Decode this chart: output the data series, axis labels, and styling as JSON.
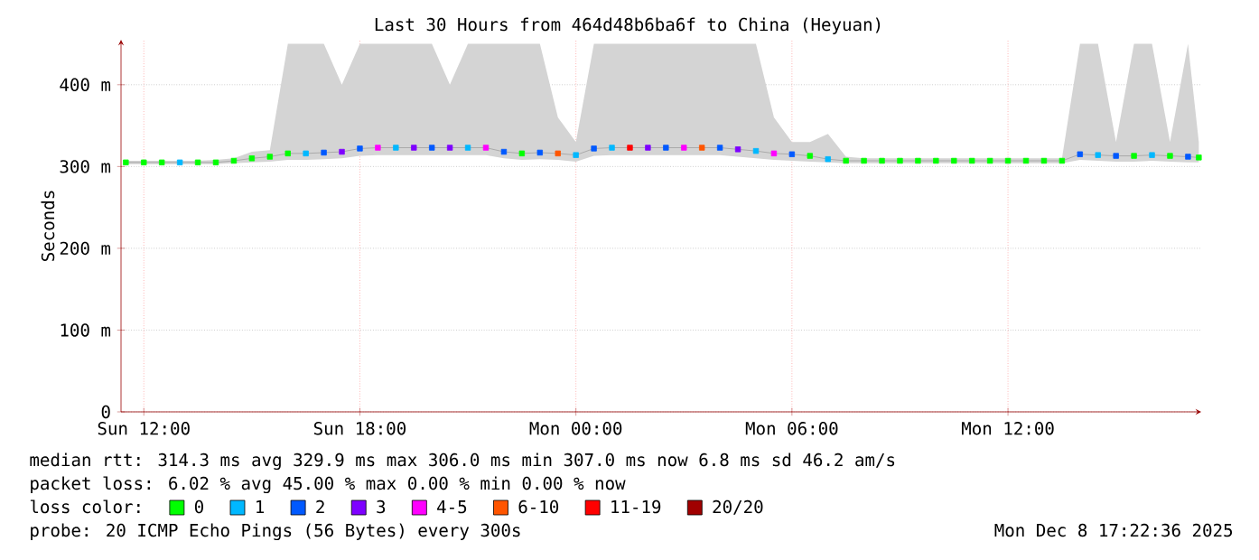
{
  "chart_data": {
    "type": "scatter",
    "title": "Last 30 Hours from 464d48b6ba6f to China (Heyuan)",
    "ylabel": "Seconds",
    "legend_title": "loss color:",
    "legend": "bottom",
    "grid": true,
    "marker": "square",
    "xlim": [
      "2025-12-07T11:22",
      "2025-12-08T17:22"
    ],
    "ylim": [
      0,
      455
    ],
    "xticks": [
      {
        "value": "2025-12-07T12:00",
        "label": "Sun 12:00"
      },
      {
        "value": "2025-12-07T18:00",
        "label": "Sun 18:00"
      },
      {
        "value": "2025-12-08T00:00",
        "label": "Mon 00:00"
      },
      {
        "value": "2025-12-08T06:00",
        "label": "Mon 06:00"
      },
      {
        "value": "2025-12-08T12:00",
        "label": "Mon 12:00"
      }
    ],
    "yticks": [
      0,
      {
        "value": 100,
        "label": "100 m"
      },
      {
        "value": 200,
        "label": "200 m"
      },
      {
        "value": 300,
        "label": "300 m"
      },
      {
        "value": 400,
        "label": "400 m"
      }
    ],
    "annotations": [
      "median rtt: 314.3 ms avg 329.9 ms max 306.0 ms min 307.0 ms now 6.8 ms sd 46.2 am/s",
      "packet loss: 6.02 % avg 45.00 % max 0.00 % min 0.00 % now",
      "probe: 20 ICMP Echo Pings (56 Bytes) every 300s",
      "Mon Dec 8 17:22:36 2025"
    ],
    "series": [
      {
        "type": "line",
        "color": "#aaaaaa",
        "marker": "none",
        "x": [
          "2025-12-07T11:30",
          "2025-12-07T12:00",
          "2025-12-07T12:30",
          "2025-12-07T13:00",
          "2025-12-07T13:30",
          "2025-12-07T14:00",
          "2025-12-07T14:30",
          "2025-12-07T15:00",
          "2025-12-07T15:30",
          "2025-12-07T16:00",
          "2025-12-07T16:30",
          "2025-12-07T17:00",
          "2025-12-07T17:30",
          "2025-12-07T18:00",
          "2025-12-07T18:30",
          "2025-12-07T19:00",
          "2025-12-07T19:30",
          "2025-12-07T20:00",
          "2025-12-07T20:30",
          "2025-12-07T21:00",
          "2025-12-07T21:30",
          "2025-12-07T22:00",
          "2025-12-07T22:30",
          "2025-12-07T23:00",
          "2025-12-07T23:30",
          "2025-12-08T00:00",
          "2025-12-08T00:30",
          "2025-12-08T01:00",
          "2025-12-08T01:30",
          "2025-12-08T02:00",
          "2025-12-08T02:30",
          "2025-12-08T03:00",
          "2025-12-08T03:30",
          "2025-12-08T04:00",
          "2025-12-08T04:30",
          "2025-12-08T05:00",
          "2025-12-08T05:30",
          "2025-12-08T06:00",
          "2025-12-08T06:30",
          "2025-12-08T07:00",
          "2025-12-08T07:30",
          "2025-12-08T08:00",
          "2025-12-08T08:30",
          "2025-12-08T09:00",
          "2025-12-08T09:30",
          "2025-12-08T10:00",
          "2025-12-08T10:30",
          "2025-12-08T11:00",
          "2025-12-08T11:30",
          "2025-12-08T12:00",
          "2025-12-08T12:30",
          "2025-12-08T13:00",
          "2025-12-08T13:30",
          "2025-12-08T14:00",
          "2025-12-08T14:30",
          "2025-12-08T15:00",
          "2025-12-08T15:30",
          "2025-12-08T16:00",
          "2025-12-08T16:30",
          "2025-12-08T17:00",
          "2025-12-08T17:18"
        ],
        "values": [
          305,
          305,
          305,
          305,
          305,
          305,
          307,
          310,
          312,
          316,
          316,
          317,
          318,
          322,
          323,
          323,
          323,
          323,
          323,
          323,
          323,
          318,
          316,
          317,
          316,
          314,
          322,
          323,
          323,
          323,
          323,
          323,
          323,
          323,
          321,
          319,
          316,
          315,
          313,
          309,
          307,
          307,
          307,
          307,
          307,
          307,
          307,
          307,
          307,
          307,
          307,
          307,
          307,
          315,
          314,
          313,
          313,
          314,
          313,
          312,
          311
        ],
        "lower": [
          303,
          303,
          303,
          303,
          303,
          303,
          304,
          305,
          306,
          308,
          308,
          309,
          310,
          313,
          314,
          314,
          314,
          314,
          314,
          314,
          314,
          310,
          308,
          309,
          308,
          306,
          313,
          314,
          314,
          314,
          314,
          314,
          314,
          314,
          312,
          310,
          308,
          307,
          306,
          305,
          304,
          304,
          304,
          304,
          304,
          304,
          304,
          304,
          304,
          304,
          304,
          304,
          304,
          308,
          307,
          306,
          306,
          307,
          306,
          305,
          305
        ],
        "upper": [
          307,
          307,
          307,
          307,
          307,
          308,
          310,
          318,
          320,
          450,
          450,
          450,
          400,
          450,
          450,
          450,
          450,
          450,
          400,
          450,
          450,
          450,
          450,
          450,
          360,
          330,
          450,
          450,
          450,
          450,
          450,
          450,
          450,
          450,
          450,
          450,
          360,
          330,
          330,
          340,
          312,
          310,
          310,
          310,
          310,
          310,
          310,
          310,
          310,
          310,
          310,
          310,
          310,
          450,
          450,
          330,
          450,
          450,
          330,
          450,
          330
        ]
      },
      {
        "name": "0",
        "color": "#00ff00",
        "x": [
          "2025-12-07T11:30",
          "2025-12-07T12:00",
          "2025-12-07T12:30",
          "2025-12-07T13:30",
          "2025-12-07T14:00",
          "2025-12-07T14:30",
          "2025-12-07T15:00",
          "2025-12-07T15:30",
          "2025-12-07T16:00",
          "2025-12-07T22:30",
          "2025-12-08T06:30",
          "2025-12-08T07:30",
          "2025-12-08T08:00",
          "2025-12-08T08:30",
          "2025-12-08T09:00",
          "2025-12-08T09:30",
          "2025-12-08T10:00",
          "2025-12-08T10:30",
          "2025-12-08T11:00",
          "2025-12-08T11:30",
          "2025-12-08T12:00",
          "2025-12-08T12:30",
          "2025-12-08T13:00",
          "2025-12-08T13:30",
          "2025-12-08T15:30",
          "2025-12-08T16:30",
          "2025-12-08T17:18"
        ],
        "values": [
          305,
          305,
          305,
          305,
          305,
          307,
          310,
          312,
          316,
          316,
          313,
          307,
          307,
          307,
          307,
          307,
          307,
          307,
          307,
          307,
          307,
          307,
          307,
          307,
          313,
          313,
          311
        ]
      },
      {
        "name": "1",
        "color": "#00b8ff",
        "x": [
          "2025-12-07T13:00",
          "2025-12-07T16:30",
          "2025-12-07T19:00",
          "2025-12-07T21:00",
          "2025-12-08T00:00",
          "2025-12-08T01:00",
          "2025-12-08T05:00",
          "2025-12-08T07:00",
          "2025-12-08T14:30",
          "2025-12-08T16:00"
        ],
        "values": [
          305,
          316,
          323,
          323,
          314,
          323,
          319,
          309,
          314,
          314
        ]
      },
      {
        "name": "2",
        "color": "#0059ff",
        "x": [
          "2025-12-07T17:00",
          "2025-12-07T18:00",
          "2025-12-07T20:00",
          "2025-12-07T22:00",
          "2025-12-07T23:00",
          "2025-12-08T00:30",
          "2025-12-08T02:30",
          "2025-12-08T04:00",
          "2025-12-08T06:00",
          "2025-12-08T14:00",
          "2025-12-08T15:00",
          "2025-12-08T17:00"
        ],
        "values": [
          317,
          322,
          323,
          318,
          317,
          322,
          323,
          323,
          315,
          315,
          313,
          312
        ]
      },
      {
        "name": "3",
        "color": "#7e00ff",
        "x": [
          "2025-12-07T17:30",
          "2025-12-07T19:30",
          "2025-12-07T20:30",
          "2025-12-08T02:00",
          "2025-12-08T04:30"
        ],
        "values": [
          318,
          323,
          323,
          323,
          321
        ]
      },
      {
        "name": "4-5",
        "color": "#ff00ff",
        "x": [
          "2025-12-07T18:30",
          "2025-12-07T21:30",
          "2025-12-08T03:00",
          "2025-12-08T05:30"
        ],
        "values": [
          323,
          323,
          323,
          316
        ]
      },
      {
        "name": "6-10",
        "color": "#ff5500",
        "x": [
          "2025-12-07T23:30",
          "2025-12-08T03:30"
        ],
        "values": [
          316,
          323
        ]
      },
      {
        "name": "11-19",
        "color": "#ff0000",
        "x": [
          "2025-12-08T01:30"
        ],
        "values": [
          323
        ]
      },
      {
        "name": "20/20",
        "color": "#a10000"
      }
    ]
  }
}
